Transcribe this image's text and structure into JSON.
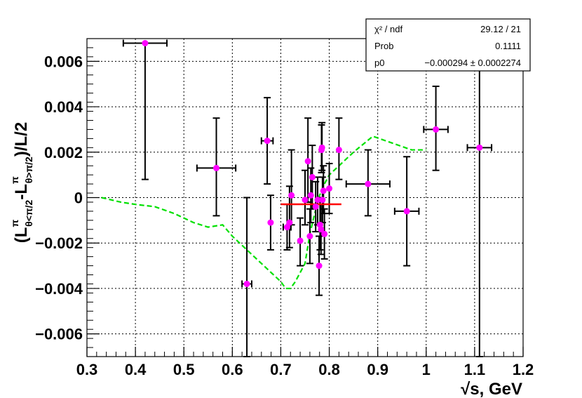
{
  "chart_data": {
    "type": "scatter",
    "xlabel": "√s, GeV",
    "ylabel": "(L^π_{θ<π/2}-L^π_{θ>π/2})/L/2",
    "xlim": [
      0.3,
      1.2
    ],
    "ylim": [
      -0.007,
      0.007
    ],
    "grid": true,
    "x_ticks": [
      "0.3",
      "0.4",
      "0.5",
      "0.6",
      "0.7",
      "0.8",
      "0.9",
      "1",
      "1.1",
      "1.2"
    ],
    "y_ticks": [
      "−0.006",
      "−0.004",
      "−0.002",
      "0",
      "0.002",
      "0.004",
      "0.006"
    ],
    "colors": {
      "points": "#ff00ff",
      "errors": "#000000",
      "fit": "#ff0000",
      "model": "#00e000"
    },
    "series": [
      {
        "kind": "data_points",
        "points": [
          {
            "x": 0.42,
            "y": 0.0068,
            "xerr": 0.045,
            "ylo": 0.0008,
            "yhi": 0.0068
          },
          {
            "x": 0.567,
            "y": 0.0013,
            "xerr": 0.04,
            "ylo": -0.0008,
            "yhi": 0.0035
          },
          {
            "x": 0.63,
            "y": -0.0038,
            "xerr": 0.01,
            "ylo": -0.007,
            "yhi": 0.0
          },
          {
            "x": 0.672,
            "y": 0.0025,
            "xerr": 0.012,
            "ylo": 0.0006,
            "yhi": 0.0044
          },
          {
            "x": 0.679,
            "y": -0.0011,
            "xerr": 0.0,
            "ylo": -0.0023,
            "yhi": 0.0001
          },
          {
            "x": 0.713,
            "y": -0.0013,
            "xerr": 0.008,
            "ylo": -0.0023,
            "yhi": -0.0003
          },
          {
            "x": 0.718,
            "y": -0.0011,
            "xerr": 0.0,
            "ylo": -0.0022,
            "yhi": 0.0005
          },
          {
            "x": 0.722,
            "y": 0.0001,
            "xerr": 0.0,
            "ylo": -0.0012,
            "yhi": 0.0021
          },
          {
            "x": 0.74,
            "y": -0.0019,
            "xerr": 0.0,
            "ylo": -0.003,
            "yhi": -0.0009
          },
          {
            "x": 0.75,
            "y": -0.0001,
            "xerr": 0.0,
            "ylo": -0.0012,
            "yhi": 0.0012
          },
          {
            "x": 0.756,
            "y": 0.0016,
            "xerr": 0.0,
            "ylo": -0.0002,
            "yhi": 0.0035
          },
          {
            "x": 0.76,
            "y": -0.0017,
            "xerr": 0.0,
            "ylo": -0.0029,
            "yhi": -0.0005
          },
          {
            "x": 0.762,
            "y": 0.0001,
            "xerr": 0.0,
            "ylo": -0.0011,
            "yhi": 0.0013
          },
          {
            "x": 0.765,
            "y": 0.0009,
            "xerr": 0.0,
            "ylo": -0.0005,
            "yhi": 0.0023
          },
          {
            "x": 0.772,
            "y": -0.0004,
            "xerr": 0.0,
            "ylo": -0.0015,
            "yhi": 0.0007
          },
          {
            "x": 0.776,
            "y": -0.0001,
            "xerr": 0.0,
            "ylo": -0.0012,
            "yhi": 0.0009
          },
          {
            "x": 0.779,
            "y": -0.003,
            "xerr": 0.0,
            "ylo": -0.0043,
            "yhi": -0.0017
          },
          {
            "x": 0.781,
            "y": -0.0012,
            "xerr": 0.0,
            "ylo": -0.0023,
            "yhi": 0.0
          },
          {
            "x": 0.783,
            "y": -0.0014,
            "xerr": 0.0,
            "ylo": -0.0025,
            "yhi": -0.0003
          },
          {
            "x": 0.784,
            "y": 0.0021,
            "xerr": 0.0,
            "ylo": 0.0011,
            "yhi": 0.0032
          },
          {
            "x": 0.785,
            "y": 0.0022,
            "xerr": 0.0,
            "ylo": 0.0012,
            "yhi": 0.0033
          },
          {
            "x": 0.786,
            "y": -0.0001,
            "xerr": 0.0,
            "ylo": -0.0011,
            "yhi": 0.0009
          },
          {
            "x": 0.788,
            "y": 0.0003,
            "xerr": 0.0,
            "ylo": -0.0007,
            "yhi": 0.0014
          },
          {
            "x": 0.79,
            "y": -0.0016,
            "xerr": 0.0,
            "ylo": -0.0027,
            "yhi": -0.0005
          },
          {
            "x": 0.8,
            "y": 0.0004,
            "xerr": 0.0,
            "ylo": -0.0007,
            "yhi": 0.0015
          },
          {
            "x": 0.82,
            "y": 0.0021,
            "xerr": 0.0,
            "ylo": 0.0008,
            "yhi": 0.0035
          },
          {
            "x": 0.88,
            "y": 0.0006,
            "xerr": 0.045,
            "ylo": -0.0008,
            "yhi": 0.0021
          },
          {
            "x": 0.96,
            "y": -0.0006,
            "xerr": 0.025,
            "ylo": -0.003,
            "yhi": 0.0018
          },
          {
            "x": 1.02,
            "y": 0.003,
            "xerr": 0.025,
            "ylo": 0.0012,
            "yhi": 0.0049
          },
          {
            "x": 1.11,
            "y": 0.0022,
            "xerr": 0.025,
            "ylo": -0.007,
            "yhi": 0.0056
          }
        ]
      },
      {
        "kind": "fit_line",
        "x": [
          0.7,
          0.825
        ],
        "y": [
          -0.000294,
          -0.000294
        ]
      },
      {
        "kind": "model_curve",
        "x": [
          0.33,
          0.37,
          0.4,
          0.44,
          0.48,
          0.52,
          0.55,
          0.58,
          0.6,
          0.62,
          0.64,
          0.66,
          0.68,
          0.7,
          0.71,
          0.72,
          0.73,
          0.75,
          0.76,
          0.77,
          0.78,
          0.79,
          0.8,
          0.82,
          0.85,
          0.89,
          0.93,
          0.97,
          1.0
        ],
        "y": [
          0.0,
          -0.0002,
          -0.0003,
          -0.0004,
          -0.0007,
          -0.0011,
          -0.0013,
          -0.0012,
          -0.0017,
          -0.0021,
          -0.0025,
          -0.0029,
          -0.0033,
          -0.0037,
          -0.004,
          -0.004,
          -0.0037,
          -0.0029,
          -0.0016,
          -0.0007,
          0.0001,
          0.0006,
          0.001,
          0.0014,
          0.002,
          0.0027,
          0.0024,
          0.0021,
          0.0021
        ]
      }
    ]
  },
  "stats": {
    "rows": [
      {
        "label": "χ² / ndf",
        "value": "29.12 / 21"
      },
      {
        "label": "Prob",
        "value": "0.1111"
      },
      {
        "label": "p0",
        "value": "−0.000294 ± 0.0002274"
      }
    ]
  },
  "axis_titles": {
    "x": "√s, GeV",
    "y_prefix": "(L",
    "y_sup1": "π",
    "y_sub1": "θ<π/2",
    "y_mid": "-L",
    "y_sup2": "π",
    "y_sub2": "θ>π/2",
    "y_suffix": ")/L/2"
  }
}
